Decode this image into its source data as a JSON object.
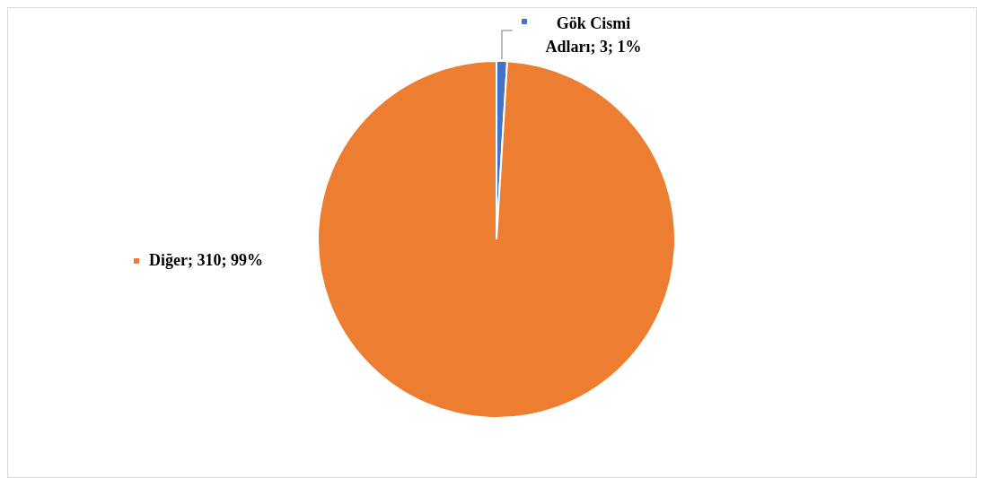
{
  "chart_data": {
    "type": "pie",
    "categories": [
      "Gök Cismi Adları",
      "Diğer"
    ],
    "values": [
      3,
      310
    ],
    "colors": [
      "#4472c4",
      "#ed7d31"
    ],
    "value_labels": [
      "3; 1%",
      "310; 99%"
    ],
    "legend": "top left"
  }
}
